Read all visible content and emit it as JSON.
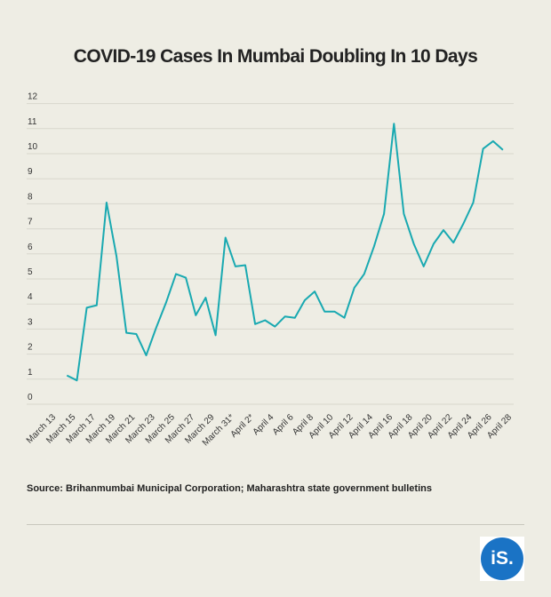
{
  "chart_data": {
    "type": "line",
    "title": "COVID-19 Cases In Mumbai Doubling In 10 Days",
    "xlabel": "",
    "ylabel": "",
    "ylim": [
      0,
      12
    ],
    "yticks": [
      "0",
      "1",
      "2",
      "3",
      "4",
      "5",
      "6",
      "7",
      "8",
      "9",
      "10",
      "11",
      "12"
    ],
    "xtick_labels": [
      "March 13",
      "March 15",
      "March 17",
      "March 19",
      "March 21",
      "March 23",
      "March 25",
      "March 27",
      "March 29",
      "March 31*",
      "April 2*",
      "April 4",
      "April 6",
      "April 8",
      "April 10",
      "April 12",
      "April 14",
      "April 16",
      "April 18",
      "April 20",
      "April 22",
      "April 24",
      "April 26",
      "April 28"
    ],
    "grid": true,
    "series": [
      {
        "values": [
          null,
          null,
          1.15,
          0.95,
          3.85,
          3.95,
          8.05,
          5.9,
          2.85,
          2.8,
          1.95,
          3.05,
          4.05,
          5.2,
          5.05,
          3.55,
          4.25,
          2.75,
          6.65,
          5.5,
          5.55,
          3.2,
          3.35,
          3.1,
          3.5,
          3.45,
          4.15,
          4.5,
          3.7,
          3.7,
          3.45,
          4.65,
          5.2,
          6.3,
          7.6,
          11.2,
          7.6,
          6.4,
          5.5,
          6.4,
          6.95,
          6.45,
          7.2,
          8.05,
          10.2,
          10.5,
          10.15
        ]
      }
    ]
  },
  "source": "Source: Brihanmumbai Municipal Corporation; Maharashtra state government bulletins",
  "logo": {
    "text": "iS.",
    "color": "#1a73c5"
  },
  "colors": {
    "line": "#19a9b1",
    "background": "#eeede4"
  }
}
